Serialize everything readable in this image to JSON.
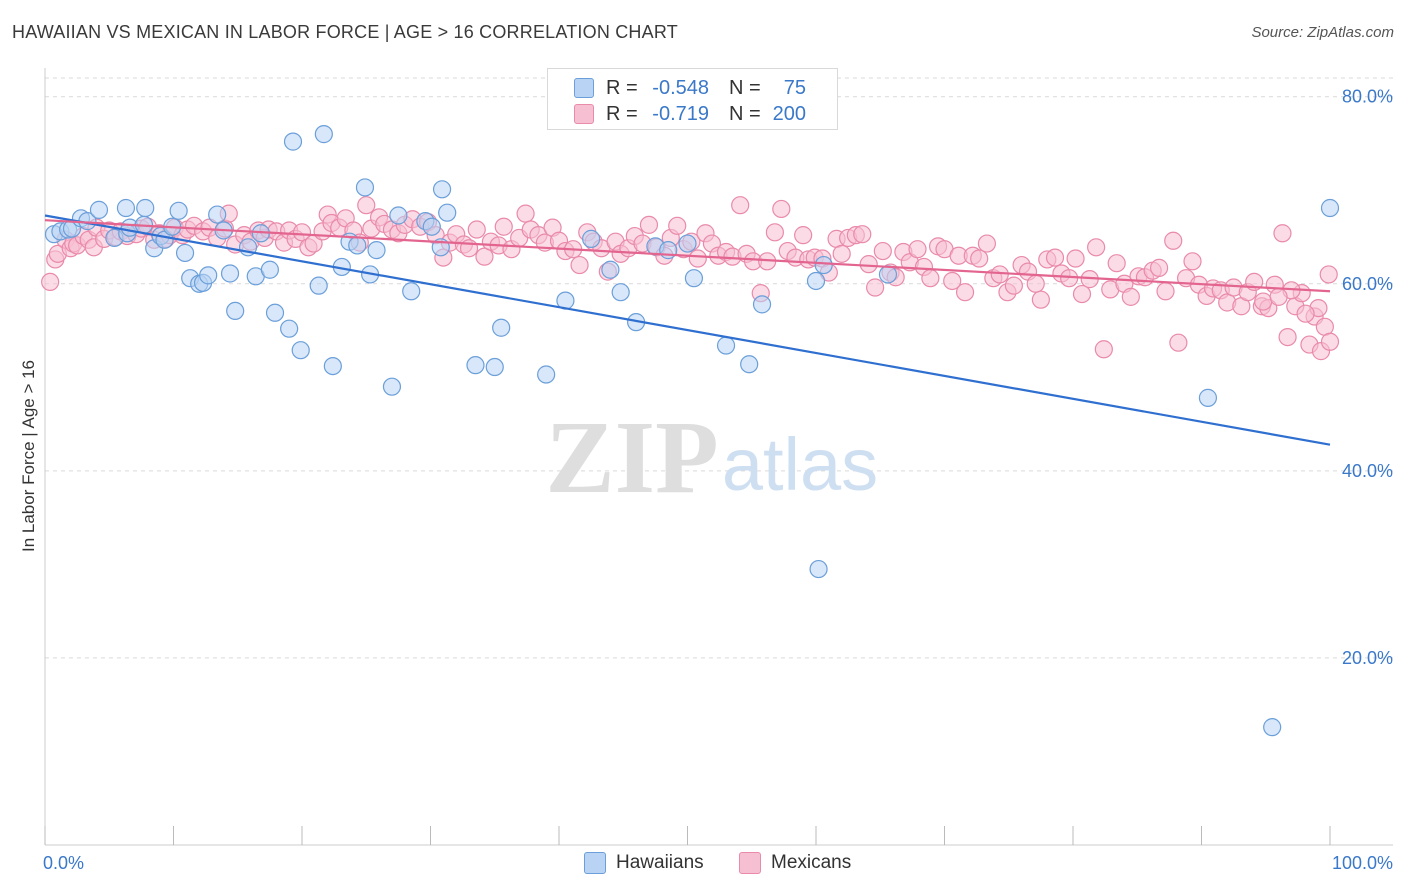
{
  "title": "HAWAIIAN VS MEXICAN IN LABOR FORCE | AGE > 16 CORRELATION CHART",
  "source": "Source: ZipAtlas.com",
  "watermark": {
    "zip": "ZIP",
    "atlas": "atlas"
  },
  "colors": {
    "hawaiian_fill": "#b8d3f4",
    "hawaiian_stroke": "#6b9fd9",
    "hawaiian_line": "#2f6fd0",
    "mexican_fill": "#f7bfd2",
    "mexican_stroke": "#e98aab",
    "mexican_line": "#e2648f",
    "tick_label": "#3a78c9",
    "grid": "#d9d9d9"
  },
  "stats": {
    "hawaiians": {
      "r_label": "R =",
      "r_value": "-0.548",
      "n_label": "N =",
      "n_value": "75"
    },
    "mexicans": {
      "r_label": "R =",
      "r_value": "-0.719",
      "n_label": "N =",
      "n_value": "200"
    }
  },
  "legend": {
    "hawaiians": "Hawaiians",
    "mexicans": "Mexicans"
  },
  "chart_data": {
    "type": "scatter",
    "title": "HAWAIIAN VS MEXICAN IN LABOR FORCE | AGE > 16 CORRELATION CHART",
    "xlabel": "",
    "ylabel": "In Labor Force | Age > 16",
    "xlim": [
      0,
      100
    ],
    "ylim": [
      0,
      82
    ],
    "x_tick_labels": [
      "0.0%",
      "100.0%"
    ],
    "y_ticks": [
      20,
      40,
      60,
      80
    ],
    "y_tick_labels": [
      "20.0%",
      "40.0%",
      "60.0%",
      "80.0%"
    ],
    "grid": true,
    "legend_position": "bottom-center",
    "series": [
      {
        "name": "Hawaiians",
        "trend": {
          "x": [
            0,
            100
          ],
          "y": [
            67.3,
            42.8
          ]
        },
        "points": [
          [
            0.7,
            65.3
          ],
          [
            1.2,
            65.6
          ],
          [
            1.8,
            65.8
          ],
          [
            2.1,
            65.9
          ],
          [
            2.8,
            67.0
          ],
          [
            3.3,
            66.7
          ],
          [
            4.2,
            67.9
          ],
          [
            5.4,
            64.9
          ],
          [
            6.4,
            65.4
          ],
          [
            6.3,
            68.1
          ],
          [
            6.6,
            66.0
          ],
          [
            7.7,
            66.3
          ],
          [
            7.8,
            68.1
          ],
          [
            8.5,
            63.8
          ],
          [
            9.0,
            65.1
          ],
          [
            9.3,
            64.7
          ],
          [
            9.9,
            66.1
          ],
          [
            10.4,
            67.8
          ],
          [
            10.9,
            63.3
          ],
          [
            11.3,
            60.6
          ],
          [
            12.0,
            60.0
          ],
          [
            12.3,
            60.1
          ],
          [
            12.7,
            60.9
          ],
          [
            13.4,
            67.4
          ],
          [
            13.9,
            65.7
          ],
          [
            14.4,
            61.1
          ],
          [
            14.8,
            57.1
          ],
          [
            15.8,
            63.9
          ],
          [
            16.4,
            60.8
          ],
          [
            16.8,
            65.4
          ],
          [
            17.5,
            61.5
          ],
          [
            17.9,
            56.9
          ],
          [
            19.0,
            55.2
          ],
          [
            19.3,
            75.2
          ],
          [
            19.9,
            52.9
          ],
          [
            21.3,
            59.8
          ],
          [
            21.7,
            76.0
          ],
          [
            22.4,
            51.2
          ],
          [
            23.1,
            61.8
          ],
          [
            23.7,
            64.5
          ],
          [
            24.3,
            64.1
          ],
          [
            24.9,
            70.3
          ],
          [
            25.3,
            61.0
          ],
          [
            25.8,
            63.6
          ],
          [
            27.0,
            49.0
          ],
          [
            27.5,
            67.3
          ],
          [
            28.5,
            59.2
          ],
          [
            29.6,
            66.7
          ],
          [
            30.1,
            66.1
          ],
          [
            30.8,
            63.9
          ],
          [
            30.9,
            70.1
          ],
          [
            31.3,
            67.6
          ],
          [
            33.5,
            51.3
          ],
          [
            35.0,
            51.1
          ],
          [
            35.5,
            55.3
          ],
          [
            39.0,
            50.3
          ],
          [
            40.5,
            58.2
          ],
          [
            42.5,
            64.8
          ],
          [
            44.0,
            61.5
          ],
          [
            44.8,
            59.1
          ],
          [
            46.0,
            55.9
          ],
          [
            47.5,
            64.0
          ],
          [
            48.5,
            63.6
          ],
          [
            50.0,
            64.3
          ],
          [
            50.5,
            60.6
          ],
          [
            53.0,
            53.4
          ],
          [
            54.8,
            51.4
          ],
          [
            55.8,
            57.8
          ],
          [
            60.0,
            60.3
          ],
          [
            60.6,
            62.0
          ],
          [
            60.2,
            29.5
          ],
          [
            65.6,
            61.0
          ],
          [
            90.5,
            47.8
          ],
          [
            95.5,
            12.6
          ],
          [
            100.0,
            68.1
          ]
        ]
      },
      {
        "name": "Mexicans",
        "trend": {
          "x": [
            0,
            100
          ],
          "y": [
            66.8,
            59.2
          ]
        },
        "points": [
          [
            0.4,
            60.2
          ],
          [
            0.8,
            62.6
          ],
          [
            1.0,
            63.2
          ],
          [
            1.6,
            64.7
          ],
          [
            2.0,
            63.8
          ],
          [
            2.2,
            64.3
          ],
          [
            2.5,
            64.1
          ],
          [
            3.0,
            65.1
          ],
          [
            3.4,
            64.7
          ],
          [
            3.8,
            63.9
          ],
          [
            4.0,
            66.0
          ],
          [
            4.6,
            64.8
          ],
          [
            5.0,
            65.7
          ],
          [
            5.5,
            65.0
          ],
          [
            5.9,
            65.6
          ],
          [
            6.4,
            65.1
          ],
          [
            7.1,
            65.3
          ],
          [
            7.5,
            65.9
          ],
          [
            8.0,
            66.1
          ],
          [
            8.5,
            64.7
          ],
          [
            8.9,
            65.4
          ],
          [
            9.4,
            64.8
          ],
          [
            9.7,
            65.2
          ],
          [
            10.1,
            66.0
          ],
          [
            10.7,
            65.2
          ],
          [
            11.1,
            65.8
          ],
          [
            11.6,
            66.2
          ],
          [
            12.3,
            65.6
          ],
          [
            12.8,
            66.0
          ],
          [
            13.4,
            64.9
          ],
          [
            14.0,
            65.9
          ],
          [
            14.3,
            67.5
          ],
          [
            14.8,
            64.2
          ],
          [
            15.5,
            65.2
          ],
          [
            16.0,
            64.5
          ],
          [
            16.6,
            65.7
          ],
          [
            17.1,
            64.9
          ],
          [
            17.4,
            65.8
          ],
          [
            18.0,
            65.6
          ],
          [
            18.6,
            64.4
          ],
          [
            19.0,
            65.7
          ],
          [
            19.5,
            64.8
          ],
          [
            20.0,
            65.5
          ],
          [
            20.5,
            63.9
          ],
          [
            20.9,
            64.3
          ],
          [
            21.6,
            65.6
          ],
          [
            22.0,
            67.4
          ],
          [
            22.3,
            66.5
          ],
          [
            22.9,
            66.0
          ],
          [
            23.4,
            67.0
          ],
          [
            24.0,
            65.7
          ],
          [
            24.5,
            64.4
          ],
          [
            25.0,
            68.4
          ],
          [
            25.4,
            65.9
          ],
          [
            26.0,
            67.1
          ],
          [
            26.4,
            66.4
          ],
          [
            27.0,
            65.8
          ],
          [
            27.5,
            65.4
          ],
          [
            28.0,
            66.3
          ],
          [
            28.6,
            66.9
          ],
          [
            29.2,
            66.1
          ],
          [
            29.8,
            66.6
          ],
          [
            30.4,
            65.2
          ],
          [
            31.0,
            62.8
          ],
          [
            31.5,
            64.4
          ],
          [
            32.0,
            65.3
          ],
          [
            32.6,
            64.2
          ],
          [
            33.0,
            63.8
          ],
          [
            33.6,
            65.8
          ],
          [
            34.2,
            62.9
          ],
          [
            34.7,
            64.5
          ],
          [
            35.3,
            64.1
          ],
          [
            35.7,
            66.1
          ],
          [
            36.3,
            63.7
          ],
          [
            36.9,
            64.9
          ],
          [
            37.4,
            67.5
          ],
          [
            37.8,
            65.8
          ],
          [
            38.4,
            65.2
          ],
          [
            38.9,
            64.4
          ],
          [
            39.5,
            66.0
          ],
          [
            40.0,
            64.6
          ],
          [
            40.5,
            63.5
          ],
          [
            41.1,
            63.7
          ],
          [
            41.6,
            62.0
          ],
          [
            42.2,
            65.5
          ],
          [
            42.7,
            64.5
          ],
          [
            43.3,
            63.8
          ],
          [
            43.8,
            61.3
          ],
          [
            44.4,
            64.5
          ],
          [
            44.8,
            63.2
          ],
          [
            45.4,
            63.8
          ],
          [
            45.9,
            65.1
          ],
          [
            46.5,
            64.3
          ],
          [
            47.0,
            66.3
          ],
          [
            47.6,
            63.9
          ],
          [
            48.2,
            63.0
          ],
          [
            48.7,
            64.9
          ],
          [
            49.2,
            66.2
          ],
          [
            49.7,
            63.7
          ],
          [
            50.3,
            64.5
          ],
          [
            50.8,
            62.7
          ],
          [
            51.4,
            65.4
          ],
          [
            51.9,
            64.3
          ],
          [
            52.4,
            63.0
          ],
          [
            53.0,
            63.4
          ],
          [
            53.5,
            62.9
          ],
          [
            54.1,
            68.4
          ],
          [
            54.6,
            63.2
          ],
          [
            55.1,
            62.4
          ],
          [
            55.7,
            59.0
          ],
          [
            56.2,
            62.4
          ],
          [
            56.8,
            65.5
          ],
          [
            57.3,
            68.0
          ],
          [
            57.8,
            63.5
          ],
          [
            58.4,
            62.8
          ],
          [
            59.0,
            65.2
          ],
          [
            59.4,
            62.6
          ],
          [
            59.9,
            62.8
          ],
          [
            60.5,
            62.7
          ],
          [
            61.0,
            61.2
          ],
          [
            61.6,
            64.8
          ],
          [
            62.0,
            63.2
          ],
          [
            62.5,
            64.9
          ],
          [
            63.1,
            65.2
          ],
          [
            63.6,
            65.3
          ],
          [
            64.1,
            62.1
          ],
          [
            64.6,
            59.6
          ],
          [
            65.2,
            63.5
          ],
          [
            65.8,
            61.2
          ],
          [
            66.2,
            60.7
          ],
          [
            66.8,
            63.4
          ],
          [
            67.3,
            62.3
          ],
          [
            67.9,
            63.7
          ],
          [
            68.4,
            61.8
          ],
          [
            68.9,
            60.6
          ],
          [
            69.5,
            64.0
          ],
          [
            70.0,
            63.7
          ],
          [
            70.6,
            60.3
          ],
          [
            71.1,
            63.0
          ],
          [
            71.6,
            59.1
          ],
          [
            72.2,
            63.0
          ],
          [
            72.7,
            62.7
          ],
          [
            73.3,
            64.3
          ],
          [
            73.8,
            60.6
          ],
          [
            74.3,
            61.0
          ],
          [
            74.9,
            59.1
          ],
          [
            75.4,
            59.8
          ],
          [
            76.0,
            62.0
          ],
          [
            76.5,
            61.3
          ],
          [
            77.1,
            60.0
          ],
          [
            77.5,
            58.3
          ],
          [
            78.0,
            62.6
          ],
          [
            78.6,
            62.8
          ],
          [
            79.1,
            61.1
          ],
          [
            79.7,
            60.6
          ],
          [
            80.2,
            62.7
          ],
          [
            80.7,
            58.9
          ],
          [
            81.3,
            60.5
          ],
          [
            81.8,
            63.9
          ],
          [
            82.4,
            53.0
          ],
          [
            82.9,
            59.4
          ],
          [
            83.4,
            62.2
          ],
          [
            84.0,
            60.0
          ],
          [
            84.5,
            58.6
          ],
          [
            85.1,
            60.8
          ],
          [
            85.6,
            60.7
          ],
          [
            86.2,
            61.4
          ],
          [
            86.7,
            61.7
          ],
          [
            87.2,
            59.2
          ],
          [
            87.8,
            64.6
          ],
          [
            88.2,
            53.7
          ],
          [
            88.8,
            60.6
          ],
          [
            89.3,
            62.4
          ],
          [
            89.8,
            59.9
          ],
          [
            90.4,
            58.7
          ],
          [
            90.9,
            59.5
          ],
          [
            91.5,
            59.3
          ],
          [
            92.0,
            58.0
          ],
          [
            92.5,
            59.6
          ],
          [
            93.1,
            57.6
          ],
          [
            93.6,
            59.1
          ],
          [
            94.1,
            60.2
          ],
          [
            94.7,
            57.6
          ],
          [
            95.2,
            57.4
          ],
          [
            95.7,
            59.9
          ],
          [
            96.3,
            65.4
          ],
          [
            96.7,
            54.3
          ],
          [
            97.3,
            57.6
          ],
          [
            97.8,
            59.0
          ],
          [
            98.4,
            53.5
          ],
          [
            98.8,
            56.5
          ],
          [
            99.3,
            52.8
          ],
          [
            99.6,
            55.4
          ],
          [
            99.9,
            61.0
          ],
          [
            100.0,
            53.8
          ],
          [
            94.8,
            58.1
          ],
          [
            97.0,
            59.3
          ],
          [
            99.1,
            57.4
          ],
          [
            98.1,
            56.8
          ],
          [
            96.0,
            58.6
          ]
        ]
      }
    ]
  }
}
